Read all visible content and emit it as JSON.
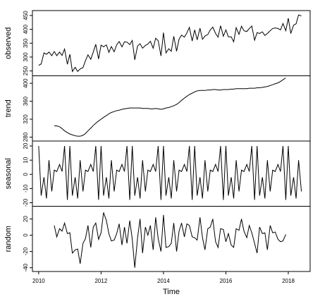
{
  "chart_data": {
    "type": "line",
    "xlabel": "Time",
    "color": "#000000",
    "xlim": [
      2009.8,
      2018.7
    ],
    "xticks": [
      2010,
      2012,
      2014,
      2016,
      2018
    ],
    "x": [
      2010,
      2010.08,
      2010.17,
      2010.25,
      2010.33,
      2010.42,
      2010.5,
      2010.58,
      2010.67,
      2010.75,
      2010.83,
      2010.92,
      2011,
      2011.08,
      2011.17,
      2011.25,
      2011.33,
      2011.42,
      2011.5,
      2011.58,
      2011.67,
      2011.75,
      2011.83,
      2011.92,
      2012,
      2012.08,
      2012.17,
      2012.25,
      2012.33,
      2012.42,
      2012.5,
      2012.58,
      2012.67,
      2012.75,
      2012.83,
      2012.92,
      2013,
      2013.08,
      2013.17,
      2013.25,
      2013.33,
      2013.42,
      2013.5,
      2013.58,
      2013.67,
      2013.75,
      2013.83,
      2013.92,
      2014,
      2014.08,
      2014.17,
      2014.25,
      2014.33,
      2014.42,
      2014.5,
      2014.58,
      2014.67,
      2014.75,
      2014.83,
      2014.92,
      2015,
      2015.08,
      2015.17,
      2015.25,
      2015.33,
      2015.42,
      2015.5,
      2015.58,
      2015.67,
      2015.75,
      2015.83,
      2015.92,
      2016,
      2016.08,
      2016.17,
      2016.25,
      2016.33,
      2016.42,
      2016.5,
      2016.58,
      2016.67,
      2016.75,
      2016.83,
      2016.92,
      2017,
      2017.08,
      2017.17,
      2017.25,
      2017.33,
      2017.42,
      2017.5,
      2017.58,
      2017.67,
      2017.75,
      2017.83,
      2017.92,
      2018,
      2018.08,
      2018.17,
      2018.25,
      2018.33,
      2018.42
    ],
    "series": [
      {
        "name": "observed",
        "ylim": [
          240,
          460
        ],
        "yticks": [
          250,
          300,
          350,
          400,
          450
        ],
        "values": [
          270,
          275,
          315,
          310,
          318,
          305,
          320,
          305,
          318,
          306,
          329,
          274,
          310,
          248,
          263,
          248,
          257,
          262,
          287,
          308,
          292,
          318,
          346,
          293,
          343,
          337,
          344,
          317,
          338,
          319,
          344,
          356,
          337,
          355,
          354,
          345,
          360,
          290,
          340,
          348,
          332,
          342,
          347,
          357,
          332,
          368,
          359,
          304,
          388,
          315,
          330,
          321,
          375,
          321,
          365,
          379,
          372,
          387,
          407,
          358,
          398,
          362,
          404,
          364,
          376,
          381,
          398,
          408,
          385,
          372,
          413,
          375,
          398,
          373,
          373,
          355,
          406,
          382,
          411,
          395,
          392,
          403,
          412,
          361,
          388,
          385,
          391,
          378,
          385,
          395,
          403,
          405,
          403,
          398,
          421,
          395,
          440,
          385,
          415,
          420,
          452,
          448
        ]
      },
      {
        "name": "trend",
        "ylim": [
          276,
          412
        ],
        "yticks": [
          280,
          320,
          360,
          400
        ],
        "values": [
          null,
          null,
          null,
          null,
          null,
          null,
          305,
          305,
          303,
          299,
          294,
          290,
          287,
          285,
          283,
          282,
          282,
          284,
          288,
          294,
          300,
          306,
          311,
          316,
          320,
          324,
          328,
          332,
          335,
          337,
          339,
          340,
          342,
          343,
          344,
          345,
          345,
          345,
          345,
          345,
          344,
          344,
          344,
          343,
          343,
          344,
          343,
          342,
          343,
          345,
          346,
          348,
          350,
          353,
          357,
          362,
          367,
          371,
          375,
          378,
          381,
          383,
          384,
          384,
          384,
          385,
          385,
          386,
          386,
          385,
          385,
          386,
          386,
          386,
          387,
          387,
          388,
          388,
          388,
          388,
          388,
          389,
          389,
          389,
          390,
          390,
          391,
          392,
          393,
          395,
          397,
          399,
          401,
          404,
          408,
          412,
          null,
          null,
          null,
          null,
          null,
          null
        ]
      },
      {
        "name": "seasonal",
        "ylim": [
          -21,
          22
        ],
        "yticks": [
          -20,
          -10,
          0,
          10,
          20
        ],
        "values": [
          20,
          -15,
          -2,
          -17,
          10,
          -12,
          3,
          2,
          7,
          2,
          20,
          -18,
          20,
          -15,
          -2,
          -17,
          10,
          -12,
          3,
          2,
          7,
          2,
          20,
          -18,
          20,
          -15,
          -2,
          -17,
          10,
          -12,
          3,
          2,
          7,
          2,
          20,
          -18,
          20,
          -15,
          -2,
          -17,
          10,
          -12,
          3,
          2,
          7,
          2,
          20,
          -18,
          20,
          -15,
          -2,
          -17,
          10,
          -12,
          3,
          2,
          7,
          2,
          20,
          -18,
          20,
          -15,
          -2,
          -17,
          10,
          -12,
          3,
          2,
          7,
          2,
          20,
          -18,
          20,
          -15,
          -2,
          -17,
          10,
          -12,
          3,
          2,
          7,
          2,
          20,
          -18,
          20,
          -15,
          -2,
          -17,
          10,
          -12,
          3,
          2,
          7,
          2,
          20,
          -18,
          20,
          -15,
          -2,
          -17,
          10,
          -12
        ]
      },
      {
        "name": "random",
        "ylim": [
          -42,
          33
        ],
        "yticks": [
          -40,
          -20,
          0,
          20
        ],
        "values": [
          null,
          null,
          null,
          null,
          null,
          null,
          12,
          -2,
          8,
          5,
          15,
          2,
          3,
          -22,
          -18,
          -17,
          -35,
          -10,
          -4,
          12,
          -15,
          10,
          15,
          -5,
          3,
          28,
          18,
          2,
          -7,
          -6,
          2,
          14,
          -12,
          10,
          -10,
          18,
          -5,
          -40,
          -3,
          20,
          -22,
          10,
          0,
          12,
          -18,
          22,
          -4,
          -20,
          25,
          -15,
          -14,
          -10,
          15,
          -20,
          5,
          15,
          -2,
          14,
          12,
          -2,
          -3,
          -6,
          22,
          -3,
          -18,
          8,
          10,
          20,
          -8,
          -15,
          8,
          7,
          -8,
          2,
          -12,
          -15,
          8,
          6,
          20,
          5,
          -3,
          12,
          3,
          -10,
          -22,
          10,
          2,
          3,
          -18,
          12,
          3,
          4,
          -5,
          -8,
          -7,
          1,
          null,
          null,
          null,
          null,
          null,
          null
        ]
      }
    ]
  }
}
